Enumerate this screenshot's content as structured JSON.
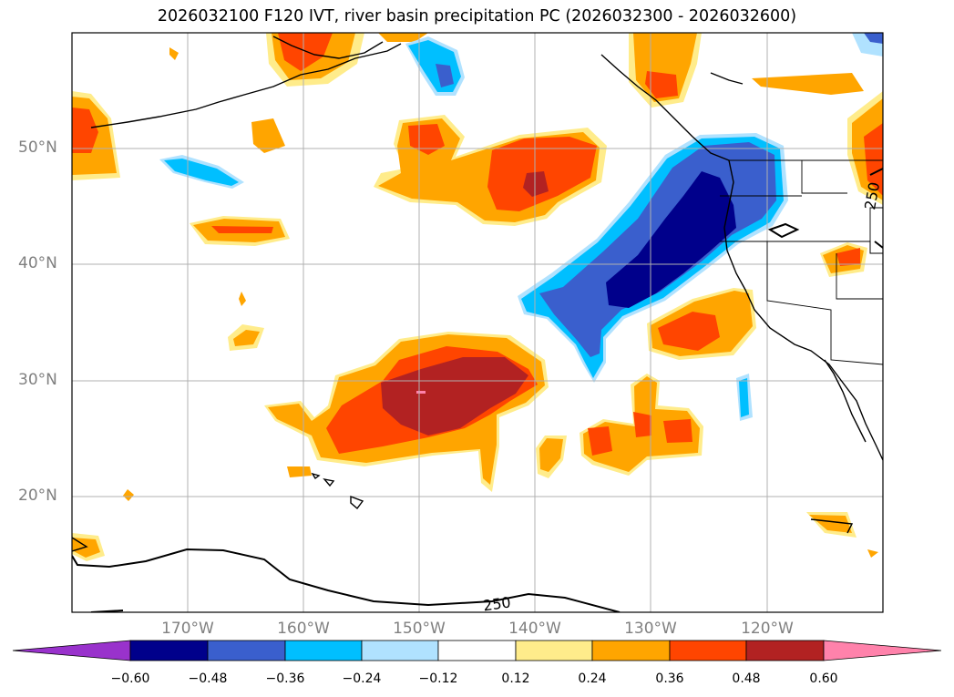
{
  "title": "2026032100 F120 IVT, river basin precipitation PC (2026032300 - 2026032600)",
  "lat_labels": [
    "50°N",
    "40°N",
    "30°N",
    "20°N"
  ],
  "lon_labels": [
    "170°W",
    "160°W",
    "150°W",
    "140°W",
    "130°W",
    "120°W"
  ],
  "contour_labels": {
    "bottom": "250",
    "right": "250"
  },
  "colorbar": {
    "tick_labels": [
      "−0.60",
      "−0.48",
      "−0.36",
      "−0.24",
      "−0.12",
      "0.12",
      "0.24",
      "0.36",
      "0.48",
      "0.60"
    ],
    "colors": [
      "#9932cc",
      "#00008b",
      "#3a5fcd",
      "#00bfff",
      "#b0e2ff",
      "#ffffff",
      "#ffec8b",
      "#ffa500",
      "#ff4500",
      "#b22222",
      "#ff82ab"
    ]
  },
  "chart_data": {
    "type": "map",
    "title": "2026032100 F120 IVT, river basin precipitation PC (2026032300 - 2026032600)",
    "lat_range": [
      10,
      60
    ],
    "lon_range": [
      -180,
      -110
    ],
    "ivt_contour_value": 250,
    "color_levels": [
      -0.6,
      -0.48,
      -0.36,
      -0.24,
      -0.12,
      0.12,
      0.24,
      0.36,
      0.48,
      0.6
    ],
    "grid": true
  }
}
